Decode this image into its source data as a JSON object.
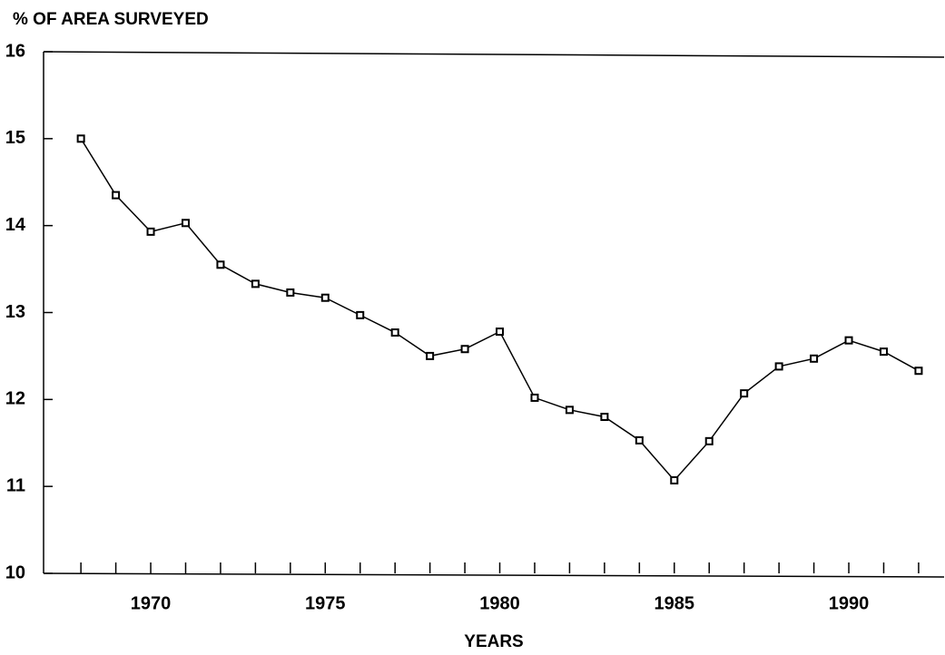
{
  "chart_data": {
    "type": "line",
    "title": "% OF AREA SURVEYED",
    "x_label": "YEARS",
    "x": [
      1968,
      1969,
      1970,
      1971,
      1972,
      1973,
      1974,
      1975,
      1976,
      1977,
      1978,
      1979,
      1980,
      1981,
      1982,
      1983,
      1984,
      1985,
      1986,
      1987,
      1988,
      1989,
      1990,
      1991,
      1992
    ],
    "values": [
      15.0,
      14.35,
      13.93,
      14.03,
      13.55,
      13.33,
      13.23,
      13.17,
      12.97,
      12.77,
      12.5,
      12.58,
      12.78,
      12.02,
      11.88,
      11.8,
      11.53,
      11.07,
      11.52,
      12.07,
      12.38,
      12.47,
      12.68,
      12.55,
      12.33
    ],
    "color": "#000000",
    "xlim": [
      1966.93,
      1992.73
    ],
    "xticks": [
      1970,
      1975,
      1980,
      1985,
      1990
    ],
    "ylim": [
      10,
      16
    ],
    "yticks": [
      10,
      11,
      12,
      13,
      14,
      15,
      16
    ]
  }
}
